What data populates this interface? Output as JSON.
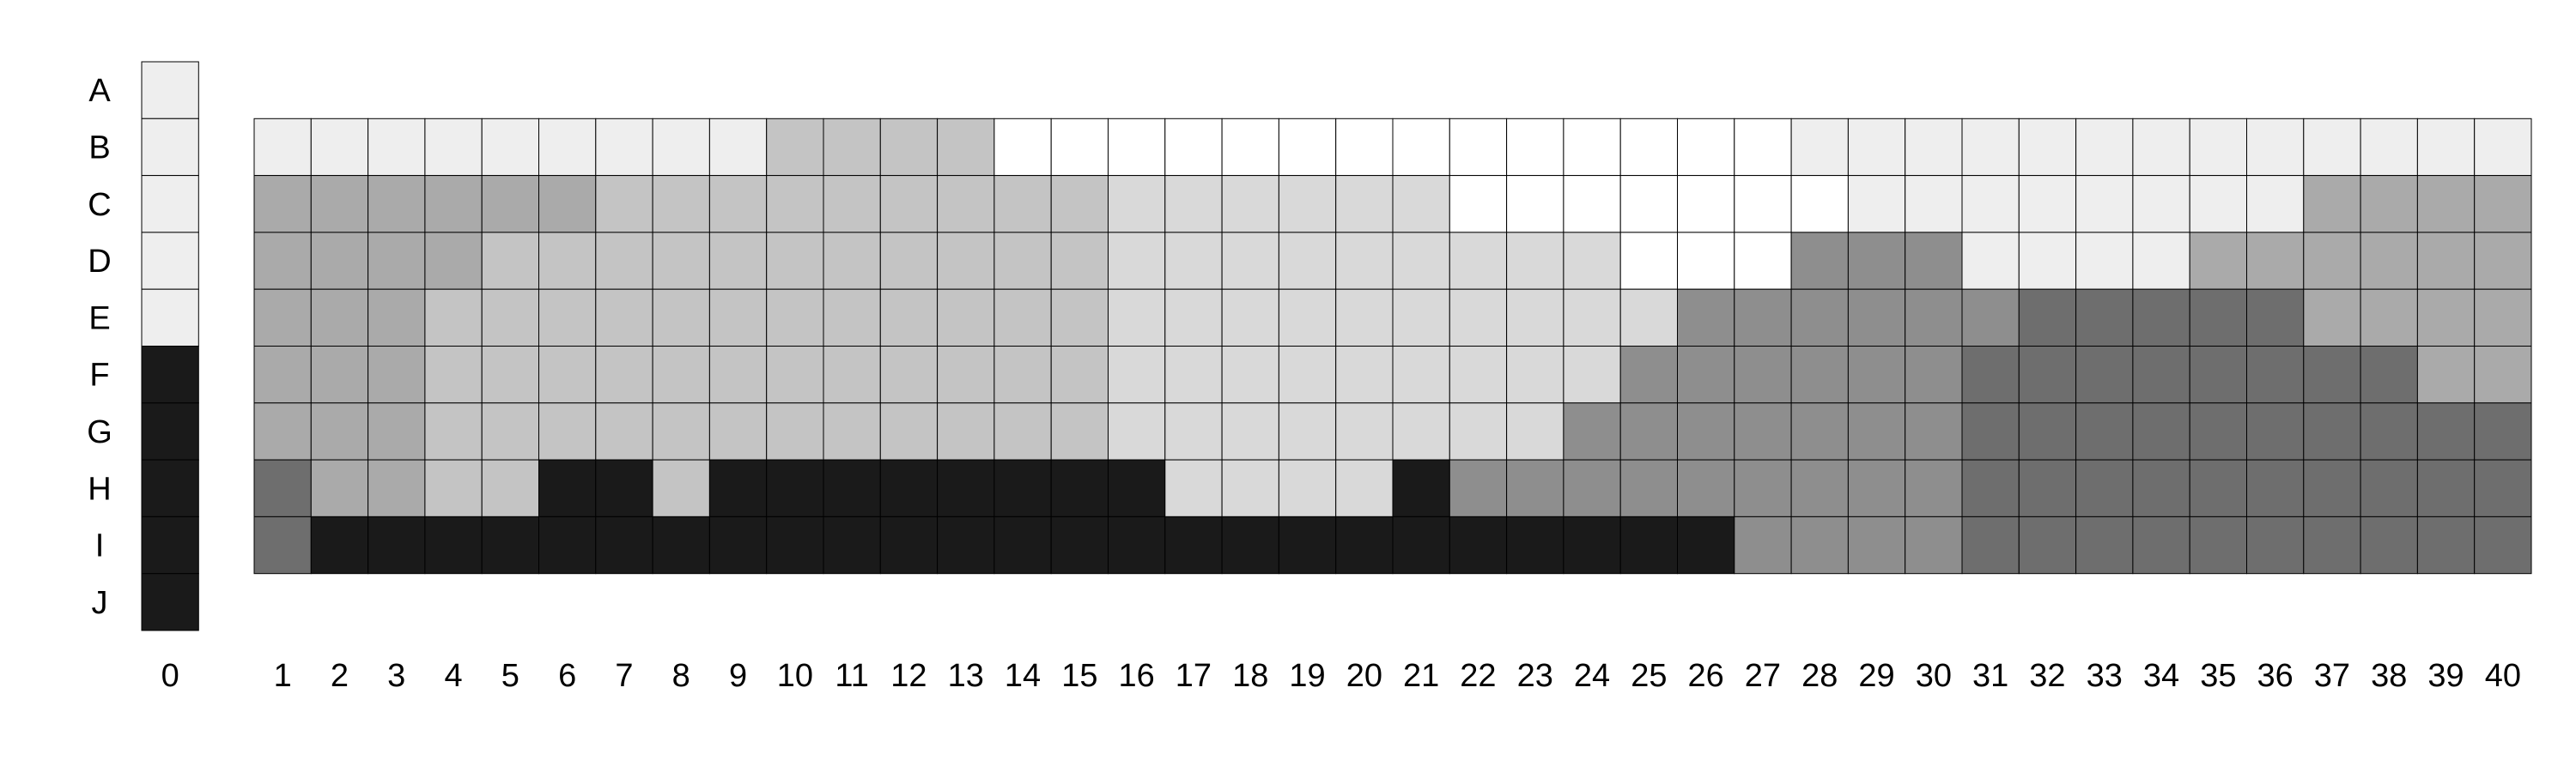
{
  "chart_data": {
    "type": "heatmap",
    "title": "",
    "xlabel": "",
    "ylabel": "",
    "rows": [
      "A",
      "B",
      "C",
      "D",
      "E",
      "F",
      "G",
      "H",
      "I",
      "J"
    ],
    "x_tick_labels": [
      "0",
      "1",
      "2",
      "3",
      "4",
      "5",
      "6",
      "7",
      "8",
      "9",
      "10",
      "11",
      "12",
      "13",
      "14",
      "15",
      "16",
      "17",
      "18",
      "19",
      "20",
      "21",
      "22",
      "23",
      "24",
      "25",
      "26",
      "27",
      "28",
      "29",
      "30",
      "31",
      "32",
      "33",
      "34",
      "35",
      "36",
      "37",
      "38",
      "39",
      "40"
    ],
    "palette": [
      "#ffffff",
      "#eeeeee",
      "#d9d9d9",
      "#c4c4c4",
      "#aaaaaa",
      "#8e8e8e",
      "#6e6e6e",
      "#1a1a1a"
    ],
    "legend_column": {
      "label": "0",
      "levels": [
        1,
        1,
        1,
        1,
        1,
        7,
        7,
        7,
        7,
        7
      ]
    },
    "grid_rows": [
      "B",
      "C",
      "D",
      "E",
      "F",
      "G",
      "H",
      "I"
    ],
    "levels": [
      [
        1,
        1,
        1,
        1,
        1,
        1,
        1,
        1,
        1,
        3,
        3,
        3,
        3,
        0,
        0,
        0,
        0,
        0,
        0,
        0,
        0,
        0,
        0,
        0,
        0,
        0,
        0,
        1,
        1,
        1,
        1,
        1,
        1,
        1,
        1,
        1,
        1,
        1,
        1,
        1
      ],
      [
        4,
        4,
        4,
        4,
        4,
        4,
        3,
        3,
        3,
        3,
        3,
        3,
        3,
        3,
        3,
        2,
        2,
        2,
        2,
        2,
        2,
        0,
        0,
        0,
        0,
        0,
        0,
        0,
        1,
        1,
        1,
        1,
        1,
        1,
        1,
        1,
        4,
        4,
        4,
        4
      ],
      [
        4,
        4,
        4,
        4,
        3,
        3,
        3,
        3,
        3,
        3,
        3,
        3,
        3,
        3,
        3,
        2,
        2,
        2,
        2,
        2,
        2,
        2,
        2,
        2,
        0,
        0,
        0,
        5,
        5,
        5,
        1,
        1,
        1,
        1,
        4,
        4,
        4,
        4,
        4,
        4
      ],
      [
        4,
        4,
        4,
        3,
        3,
        3,
        3,
        3,
        3,
        3,
        3,
        3,
        3,
        3,
        3,
        2,
        2,
        2,
        2,
        2,
        2,
        2,
        2,
        2,
        2,
        5,
        5,
        5,
        5,
        5,
        5,
        6,
        6,
        6,
        6,
        6,
        4,
        4,
        4,
        4
      ],
      [
        4,
        4,
        4,
        3,
        3,
        3,
        3,
        3,
        3,
        3,
        3,
        3,
        3,
        3,
        3,
        2,
        2,
        2,
        2,
        2,
        2,
        2,
        2,
        2,
        5,
        5,
        5,
        5,
        5,
        5,
        6,
        6,
        6,
        6,
        6,
        6,
        6,
        6,
        4,
        4
      ],
      [
        4,
        4,
        4,
        3,
        3,
        3,
        3,
        3,
        3,
        3,
        3,
        3,
        3,
        3,
        3,
        2,
        2,
        2,
        2,
        2,
        2,
        2,
        2,
        5,
        5,
        5,
        5,
        5,
        5,
        5,
        6,
        6,
        6,
        6,
        6,
        6,
        6,
        6,
        6,
        6
      ],
      [
        6,
        4,
        4,
        3,
        3,
        7,
        7,
        3,
        7,
        7,
        7,
        7,
        7,
        7,
        7,
        7,
        2,
        2,
        2,
        2,
        7,
        5,
        5,
        5,
        5,
        5,
        5,
        5,
        5,
        5,
        6,
        6,
        6,
        6,
        6,
        6,
        6,
        6,
        6,
        6
      ],
      [
        6,
        7,
        7,
        7,
        7,
        7,
        7,
        7,
        7,
        7,
        7,
        7,
        7,
        7,
        7,
        7,
        7,
        7,
        7,
        7,
        7,
        7,
        7,
        7,
        7,
        7,
        5,
        5,
        5,
        5,
        6,
        6,
        6,
        6,
        6,
        6,
        6,
        6,
        6,
        6
      ]
    ]
  }
}
